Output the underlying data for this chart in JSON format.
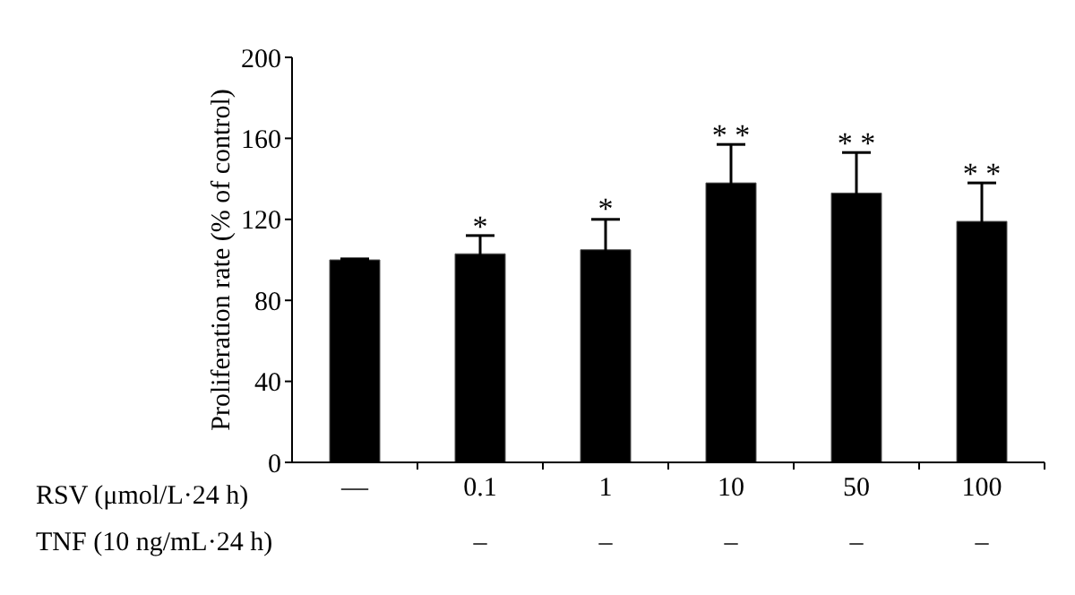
{
  "chart_data": {
    "type": "bar",
    "ylabel": "Proliferation rate (% of control)",
    "xlabel": "RSV (μmol/L·24 h)",
    "categories": [
      "—",
      "0.1",
      "1",
      "10",
      "50",
      "100"
    ],
    "values": [
      100,
      103,
      105,
      138,
      133,
      119
    ],
    "errors": [
      0.5,
      9,
      15,
      19,
      20,
      19
    ],
    "color": "#000000",
    "ylim": [
      0,
      200
    ],
    "yticks": [
      0,
      40,
      80,
      120,
      160,
      200
    ],
    "grid": false,
    "annotations": [
      "TNF (10 ng/mL·24 h)",
      "–",
      "–",
      "–",
      "–",
      "–",
      {
        "text": "*",
        "x": "0.1",
        "y": 115
      },
      {
        "text": "*",
        "x": "1",
        "y": 124
      },
      {
        "text": "* *",
        "x": "10",
        "y": 160
      },
      {
        "text": "* *",
        "x": "50",
        "y": 156
      },
      {
        "text": "* *",
        "x": "100",
        "y": 141
      }
    ]
  }
}
